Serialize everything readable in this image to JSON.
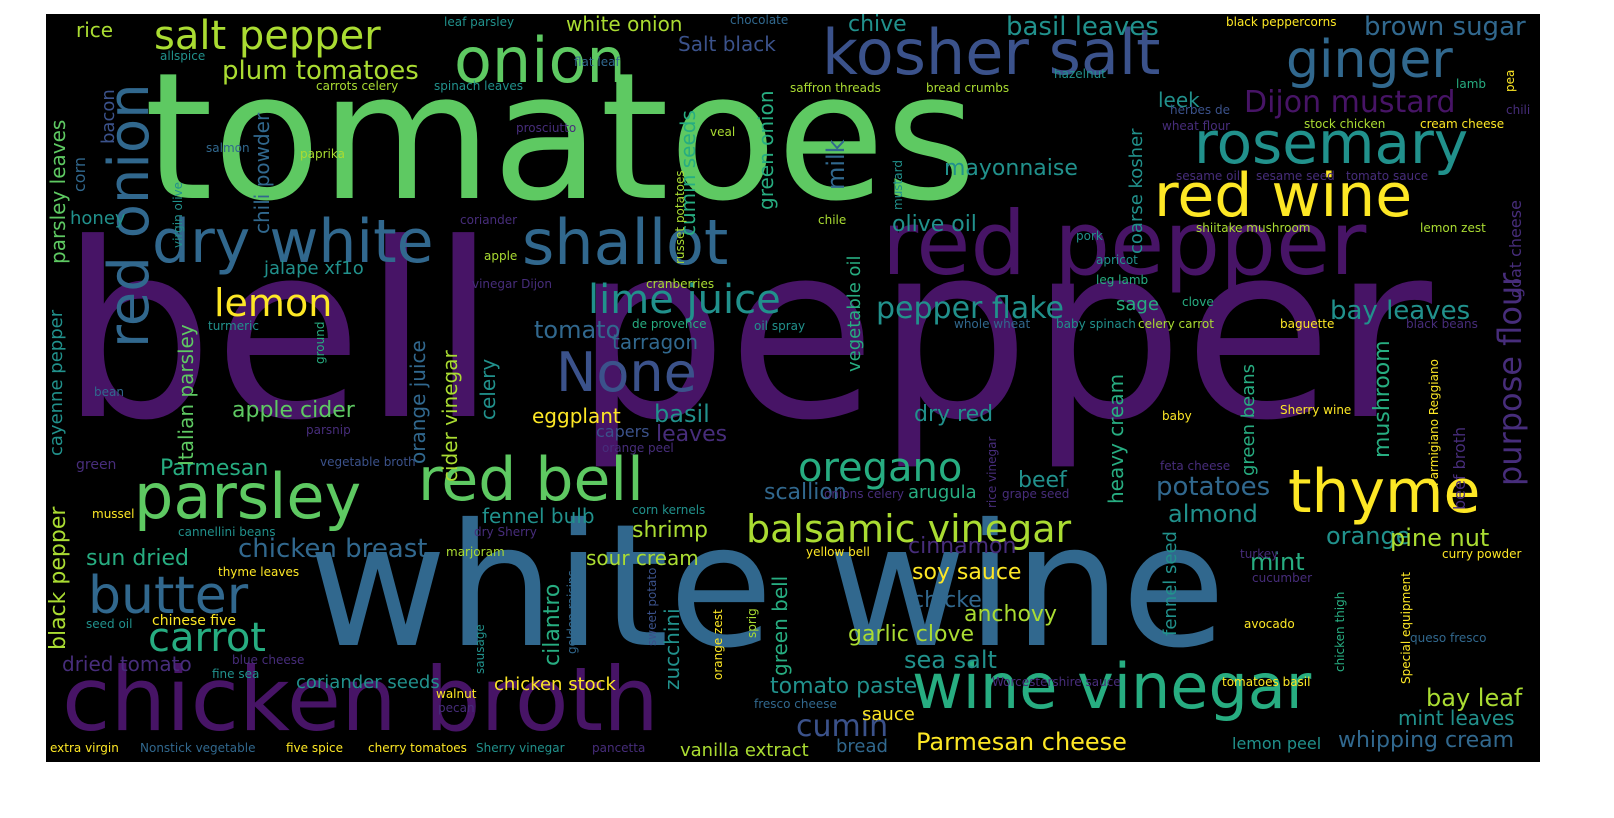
{
  "palette": {
    "background": "#000000",
    "purple": "#471466",
    "violet": "#472d7b",
    "indigo": "#3b528b",
    "blue": "#31688e",
    "teal": "#21918c",
    "sea": "#27ad81",
    "green": "#5ec962",
    "lime": "#aadc32",
    "yellow": "#fde725"
  },
  "words": [
    {
      "text": "bell pepper"
    },
    {
      "text": "tomatoes"
    },
    {
      "text": "white wine"
    },
    {
      "text": "red pepper"
    },
    {
      "text": "chicken broth"
    },
    {
      "text": "kosher salt"
    },
    {
      "text": "ginger"
    },
    {
      "text": "wine vinegar"
    },
    {
      "text": "red onion"
    },
    {
      "text": "onion"
    },
    {
      "text": "shallot"
    },
    {
      "text": "dry white"
    },
    {
      "text": "rosemary"
    },
    {
      "text": "red wine"
    },
    {
      "text": "red bell"
    },
    {
      "text": "parsley"
    },
    {
      "text": "thyme"
    },
    {
      "text": "None"
    },
    {
      "text": "butter"
    },
    {
      "text": "salt pepper"
    },
    {
      "text": "lime juice"
    },
    {
      "text": "oregano"
    },
    {
      "text": "balsamic vinegar"
    },
    {
      "text": "carrot"
    },
    {
      "text": "lemon"
    },
    {
      "text": "Dijon mustard"
    },
    {
      "text": "purpose flour"
    },
    {
      "text": "basil leaves"
    },
    {
      "text": "brown sugar"
    },
    {
      "text": "plum tomatoes"
    },
    {
      "text": "pepper flake"
    },
    {
      "text": "bay leaves"
    },
    {
      "text": "chicken breast"
    },
    {
      "text": "Parmesan cheese"
    },
    {
      "text": "cumin"
    },
    {
      "text": "tomato paste"
    },
    {
      "text": "sea salt"
    },
    {
      "text": "soy sauce"
    },
    {
      "text": "chicken"
    },
    {
      "text": "garlic clove"
    },
    {
      "text": "anchovy"
    },
    {
      "text": "potatoes"
    },
    {
      "text": "almond"
    },
    {
      "text": "mint"
    },
    {
      "text": "orange"
    },
    {
      "text": "pine nut"
    },
    {
      "text": "bay leaf"
    },
    {
      "text": "mint leaves"
    },
    {
      "text": "whipping cream"
    },
    {
      "text": "tomato"
    },
    {
      "text": "tarragon"
    },
    {
      "text": "basil"
    },
    {
      "text": "leaves"
    },
    {
      "text": "eggplant"
    },
    {
      "text": "apple cider"
    },
    {
      "text": "dry red"
    },
    {
      "text": "beef"
    },
    {
      "text": "scallion"
    },
    {
      "text": "arugula"
    },
    {
      "text": "Parmesan"
    },
    {
      "text": "fennel bulb"
    },
    {
      "text": "shrimp"
    },
    {
      "text": "sour cream"
    },
    {
      "text": "sun dried"
    },
    {
      "text": "cinnamon"
    },
    {
      "text": "dried tomato"
    },
    {
      "text": "coriander seeds"
    },
    {
      "text": "chicken stock"
    },
    {
      "text": "sauce"
    },
    {
      "text": "bread"
    },
    {
      "text": "vanilla extract"
    },
    {
      "text": "lemon peel"
    },
    {
      "text": "milk"
    },
    {
      "text": "mayonnaise"
    },
    {
      "text": "olive oil"
    },
    {
      "text": "leek"
    },
    {
      "text": "Salt black"
    },
    {
      "text": "white onion"
    },
    {
      "text": "chive"
    },
    {
      "text": "rice"
    },
    {
      "text": "honey"
    },
    {
      "text": "jalape xf1o"
    },
    {
      "text": "sage"
    },
    {
      "text": "capers"
    },
    {
      "text": "heavy cream"
    },
    {
      "text": "mushroom"
    },
    {
      "text": "cumin seeds"
    },
    {
      "text": "green onion"
    },
    {
      "text": "chili powder"
    },
    {
      "text": "parsley leaves"
    },
    {
      "text": "bacon"
    },
    {
      "text": "corn"
    },
    {
      "text": "cayenne pepper"
    },
    {
      "text": "black pepper"
    },
    {
      "text": "Italian parsley"
    },
    {
      "text": "orange juice"
    },
    {
      "text": "cider vinegar"
    },
    {
      "text": "celery"
    },
    {
      "text": "cilantro"
    },
    {
      "text": "zucchini"
    },
    {
      "text": "green bell"
    },
    {
      "text": "vegetable oil"
    },
    {
      "text": "coarse kosher"
    },
    {
      "text": "green beans"
    },
    {
      "text": "fennel seed"
    },
    {
      "text": "beef broth"
    },
    {
      "text": "goat cheese"
    },
    {
      "text": "leaf parsley"
    },
    {
      "text": "chocolate"
    },
    {
      "text": "black peppercorns"
    },
    {
      "text": "allspice"
    },
    {
      "text": "flat leaf"
    },
    {
      "text": "carrots celery"
    },
    {
      "text": "spinach leaves"
    },
    {
      "text": "saffron threads"
    },
    {
      "text": "bread crumbs"
    },
    {
      "text": "hazelnut"
    },
    {
      "text": "lamb"
    },
    {
      "text": "pea"
    },
    {
      "text": "chili"
    },
    {
      "text": "herbes de"
    },
    {
      "text": "wheat flour"
    },
    {
      "text": "stock chicken"
    },
    {
      "text": "cream cheese"
    },
    {
      "text": "prosciutto"
    },
    {
      "text": "veal"
    },
    {
      "text": "salmon"
    },
    {
      "text": "paprika"
    },
    {
      "text": "virgin olive"
    },
    {
      "text": "russet potatoes"
    },
    {
      "text": "mustard"
    },
    {
      "text": "sesame oil"
    },
    {
      "text": "sesame seed"
    },
    {
      "text": "tomato sauce"
    },
    {
      "text": "coriander"
    },
    {
      "text": "chile"
    },
    {
      "text": "shiitake mushroom"
    },
    {
      "text": "lemon zest"
    },
    {
      "text": "apple"
    },
    {
      "text": "pork"
    },
    {
      "text": "apricot"
    },
    {
      "text": "leg lamb"
    },
    {
      "text": "vinegar Dijon"
    },
    {
      "text": "cranberries"
    },
    {
      "text": "clove"
    },
    {
      "text": "turmeric"
    },
    {
      "text": "de provence"
    },
    {
      "text": "oil spray"
    },
    {
      "text": "whole wheat"
    },
    {
      "text": "baby spinach"
    },
    {
      "text": "celery carrot"
    },
    {
      "text": "baguette"
    },
    {
      "text": "black beans"
    },
    {
      "text": "ground"
    },
    {
      "text": "bean"
    },
    {
      "text": "parsnip"
    },
    {
      "text": "baby"
    },
    {
      "text": "Sherry wine"
    },
    {
      "text": "Parmigiano Reggiano"
    },
    {
      "text": "green"
    },
    {
      "text": "vegetable broth"
    },
    {
      "text": "orange peel"
    },
    {
      "text": "rice vinegar"
    },
    {
      "text": "feta cheese"
    },
    {
      "text": "onions celery"
    },
    {
      "text": "grape seed"
    },
    {
      "text": "mussel"
    },
    {
      "text": "cannellini beans"
    },
    {
      "text": "dry Sherry"
    },
    {
      "text": "corn kernels"
    },
    {
      "text": "marjoram"
    },
    {
      "text": "yellow bell"
    },
    {
      "text": "turkey"
    },
    {
      "text": "curry powder"
    },
    {
      "text": "thyme leaves"
    },
    {
      "text": "cucumber"
    },
    {
      "text": "golden raisins"
    },
    {
      "text": "sweet potato"
    },
    {
      "text": "orange zest"
    },
    {
      "text": "sprig"
    },
    {
      "text": "chicken thigh"
    },
    {
      "text": "Special equipment"
    },
    {
      "text": "chinese five"
    },
    {
      "text": "seed oil"
    },
    {
      "text": "avocado"
    },
    {
      "text": "blue cheese"
    },
    {
      "text": "sausage"
    },
    {
      "text": "queso fresco"
    },
    {
      "text": "fine sea"
    },
    {
      "text": "walnut"
    },
    {
      "text": "pecan"
    },
    {
      "text": "Worcestershire sauce"
    },
    {
      "text": "tomatoes basil"
    },
    {
      "text": "fresco cheese"
    },
    {
      "text": "extra virgin"
    },
    {
      "text": "Nonstick vegetable"
    },
    {
      "text": "five spice"
    },
    {
      "text": "cherry tomatoes"
    },
    {
      "text": "Sherry vinegar"
    },
    {
      "text": "pancetta"
    }
  ]
}
